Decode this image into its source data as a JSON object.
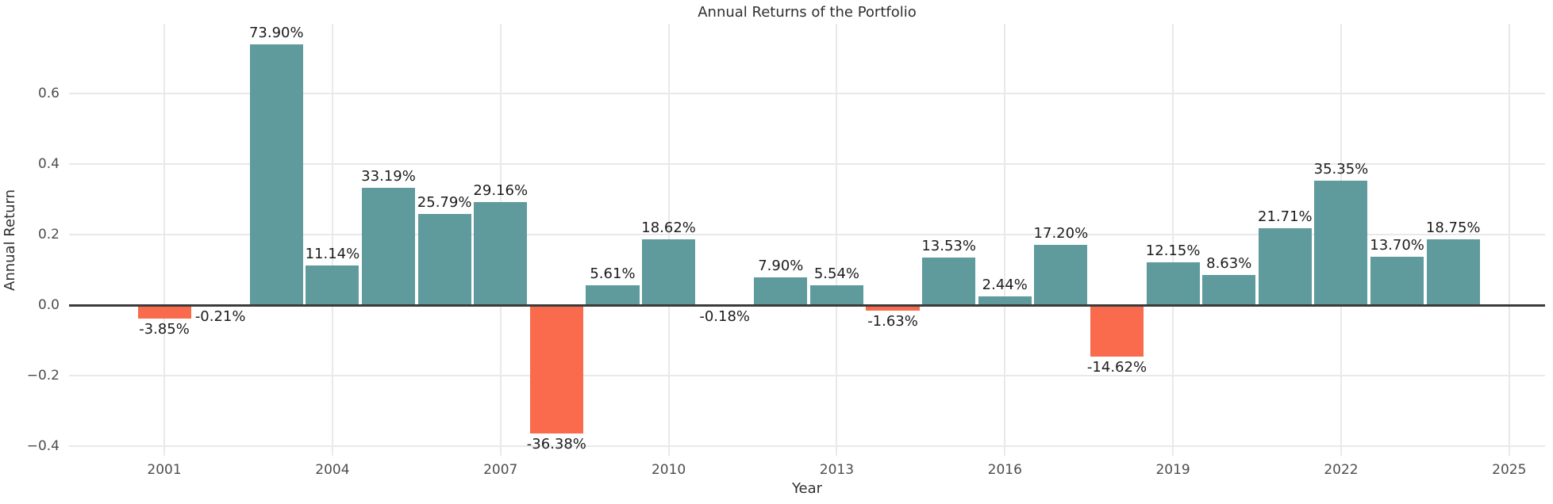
{
  "colors": {
    "positive": "#5f9a9d",
    "negative": "#fa6a4d",
    "grid": "#e9e9e9",
    "zero_line": "#3b3b3b",
    "tick_text": "#4d4d4d",
    "label_text": "#1c1c1c"
  },
  "chart_data": {
    "type": "bar",
    "title": "Annual Returns of the Portfolio",
    "xlabel": "Year",
    "ylabel": "Annual Return",
    "categories": [
      2001,
      2002,
      2003,
      2004,
      2005,
      2006,
      2007,
      2008,
      2009,
      2010,
      2011,
      2012,
      2013,
      2014,
      2015,
      2016,
      2017,
      2018,
      2019,
      2020,
      2021,
      2022,
      2023,
      2024
    ],
    "values": [
      -0.0385,
      -0.0021,
      0.739,
      0.1114,
      0.3319,
      0.2579,
      0.2916,
      -0.3638,
      0.0561,
      0.1862,
      -0.0018,
      0.079,
      0.0554,
      -0.0163,
      0.1353,
      0.0244,
      0.172,
      -0.1462,
      0.1215,
      0.0863,
      0.2171,
      0.3535,
      0.137,
      0.1875
    ],
    "labels": [
      "-3.85%",
      "-0.21%",
      "73.90%",
      "11.14%",
      "33.19%",
      "25.79%",
      "29.16%",
      "-36.38%",
      "5.61%",
      "18.62%",
      "-0.18%",
      "7.90%",
      "5.54%",
      "-1.63%",
      "13.53%",
      "2.44%",
      "17.20%",
      "-14.62%",
      "12.15%",
      "8.63%",
      "21.71%",
      "35.35%",
      "13.70%",
      "18.75%"
    ],
    "x_ticks": [
      2001,
      2004,
      2007,
      2010,
      2013,
      2016,
      2019,
      2022,
      2025
    ],
    "y_ticks": [
      0.6,
      0.4,
      0.2,
      0.0,
      -0.2,
      -0.4
    ],
    "y_tick_labels": [
      "0.6",
      "0.4",
      "0.2",
      "0.0",
      "−0.2",
      "−0.4"
    ],
    "xlim": [
      1999.3,
      2025.64
    ],
    "ylim": [
      -0.427,
      0.798
    ],
    "bar_width": 0.95,
    "grid": true,
    "legend": null
  }
}
